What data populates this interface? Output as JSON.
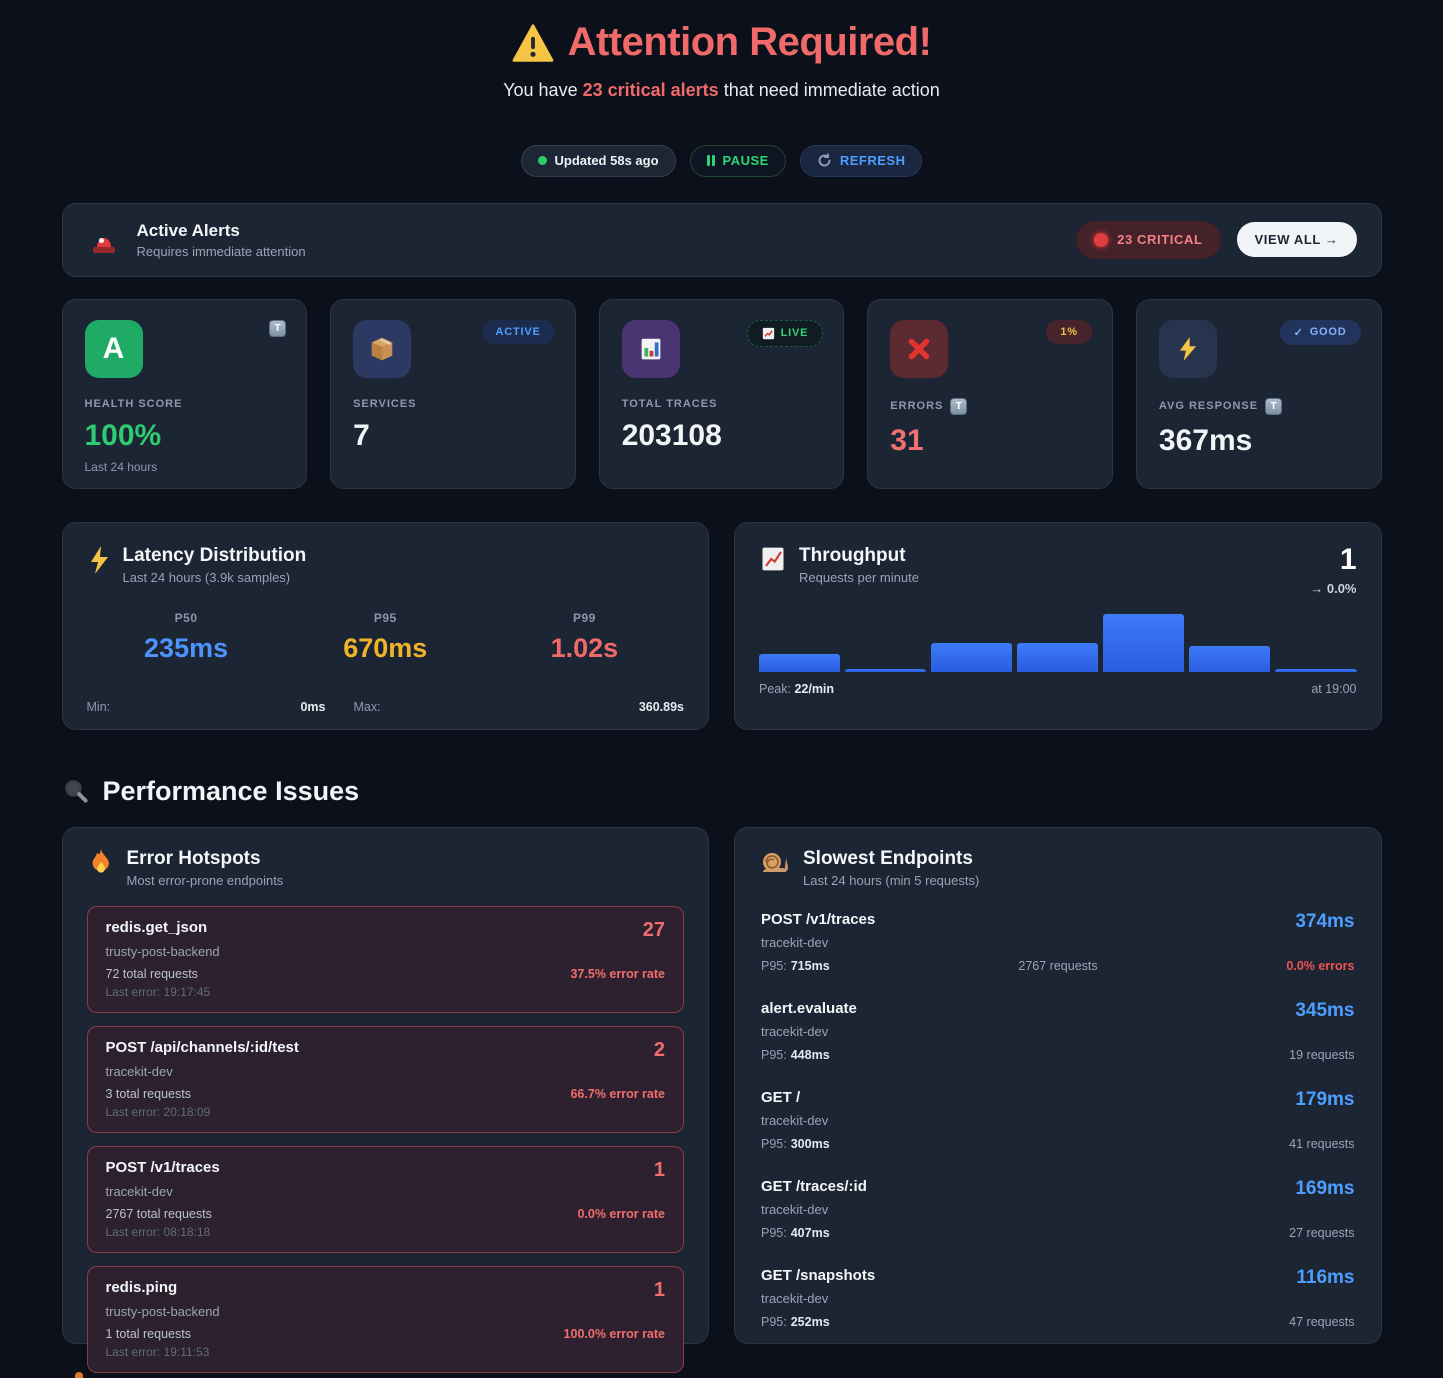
{
  "header": {
    "title": "Attention Required!",
    "subtitle_prefix": "You have ",
    "subtitle_highlight": "23 critical alerts",
    "subtitle_suffix": " that need immediate action"
  },
  "controls": {
    "updated": "Updated 58s ago",
    "pause": "PAUSE",
    "refresh": "REFRESH"
  },
  "alert_banner": {
    "title": "Active Alerts",
    "subtitle": "Requires immediate attention",
    "critical_badge": "23 CRITICAL",
    "view_all": "VIEW ALL →"
  },
  "icons": {
    "warning": "warning-triangle",
    "siren": "rotating-light",
    "metric_info_glyph": "T",
    "good_check": "✓ "
  },
  "stats": [
    {
      "label": "HEALTH SCORE",
      "value": "100%",
      "sub": "Last 24 hours",
      "tile_text": "A"
    },
    {
      "label": "SERVICES",
      "value": "7",
      "badge": "ACTIVE"
    },
    {
      "label": "TOTAL TRACES",
      "value": "203108",
      "badge": "LIVE"
    },
    {
      "label": "ERRORS",
      "value": "31",
      "badge": "1%"
    },
    {
      "label": "AVG RESPONSE",
      "value": "367ms",
      "badge": "GOOD"
    }
  ],
  "latency": {
    "title": "Latency Distribution",
    "subtitle": "Last 24 hours (3.9k samples)",
    "p50_label": "P50",
    "p50": "235ms",
    "p95_label": "P95",
    "p95": "670ms",
    "p99_label": "P99",
    "p99": "1.02s",
    "min_label": "Min:",
    "min": "0ms",
    "max_label": "Max:",
    "max": "360.89s"
  },
  "throughput": {
    "title": "Throughput",
    "subtitle": "Requests per minute",
    "current": "1",
    "trend": "→ 0.0%",
    "peak_label": "Peak: ",
    "peak": "22/min",
    "time": "at 19:00"
  },
  "chart_data": {
    "type": "bar",
    "title": "Throughput",
    "ylabel": "Requests per minute",
    "categories": [
      "",
      "",
      "",
      "",
      "",
      "",
      ""
    ],
    "values": [
      7,
      1,
      11,
      11,
      22,
      10,
      1
    ],
    "ylim": [
      0,
      22
    ],
    "peak": "22/min",
    "current": 1,
    "trend_pct": "0.0%",
    "last_bar_label": "at 19:00",
    "grid": false,
    "legend": false
  },
  "performance": {
    "heading": "Performance Issues",
    "error_hotspots": {
      "title": "Error Hotspots",
      "subtitle": "Most error-prone endpoints",
      "items": [
        {
          "name": "redis.get_json",
          "service": "trusty-post-backend",
          "requests": "72 total requests",
          "last_error": "Last error: 19:17:45",
          "count": "27",
          "rate": "37.5% error rate"
        },
        {
          "name": "POST /api/channels/:id/test",
          "service": "tracekit-dev",
          "requests": "3 total requests",
          "last_error": "Last error: 20:18:09",
          "count": "2",
          "rate": "66.7% error rate"
        },
        {
          "name": "POST /v1/traces",
          "service": "tracekit-dev",
          "requests": "2767 total requests",
          "last_error": "Last error: 08:18:18",
          "count": "1",
          "rate": "0.0% error rate"
        },
        {
          "name": "redis.ping",
          "service": "trusty-post-backend",
          "requests": "1 total requests",
          "last_error": "Last error: 19:11:53",
          "count": "1",
          "rate": "100.0% error rate"
        }
      ]
    },
    "slowest_endpoints": {
      "title": "Slowest Endpoints",
      "subtitle": "Last 24 hours (min 5 requests)",
      "items": [
        {
          "name": "POST /v1/traces",
          "service": "tracekit-dev",
          "p95_label": "P95:",
          "p95": "715ms",
          "requests": "2767 requests",
          "duration": "374ms",
          "errors": "0.0% errors"
        },
        {
          "name": "alert.evaluate",
          "service": "tracekit-dev",
          "p95_label": "P95:",
          "p95": "448ms",
          "requests": "19 requests",
          "duration": "345ms"
        },
        {
          "name": "GET /",
          "service": "tracekit-dev",
          "p95_label": "P95:",
          "p95": "300ms",
          "requests": "41 requests",
          "duration": "179ms"
        },
        {
          "name": "GET /traces/:id",
          "service": "tracekit-dev",
          "p95_label": "P95:",
          "p95": "407ms",
          "requests": "27 requests",
          "duration": "169ms"
        },
        {
          "name": "GET /snapshots",
          "service": "tracekit-dev",
          "p95_label": "P95:",
          "p95": "252ms",
          "requests": "47 requests",
          "duration": "116ms"
        }
      ]
    }
  },
  "colors": {
    "background": "#0b101b",
    "card": "#1c2533",
    "card_border": "#2a3444",
    "alert_red": "#f16a6a",
    "green": "#2ecc71",
    "blue": "#4d9fff",
    "yellow": "#f0b428",
    "bar_blue": "#2f66ec",
    "hotspot_border": "#de5252"
  }
}
